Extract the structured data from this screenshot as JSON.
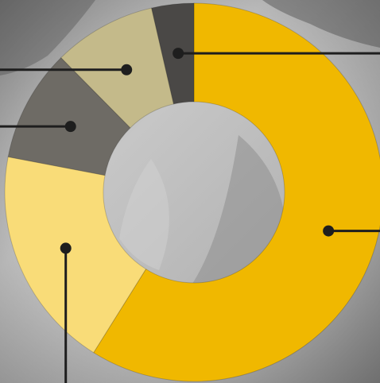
{
  "chart_data": {
    "type": "pie",
    "donut": true,
    "categories": [
      "",
      "",
      "",
      "",
      ""
    ],
    "values": [
      58.9,
      19.1,
      9.6,
      8.8,
      3.6
    ],
    "colors": [
      "#F0B800",
      "#F9DC78",
      "#6E6B65",
      "#C4BA8A",
      "#4A4846"
    ],
    "labels_visible": false,
    "background": "grayscale photo"
  },
  "palette": {
    "leader_line": "#1E1E1E",
    "photo_light": "#BCBCBC",
    "photo_dark": "#767676"
  }
}
